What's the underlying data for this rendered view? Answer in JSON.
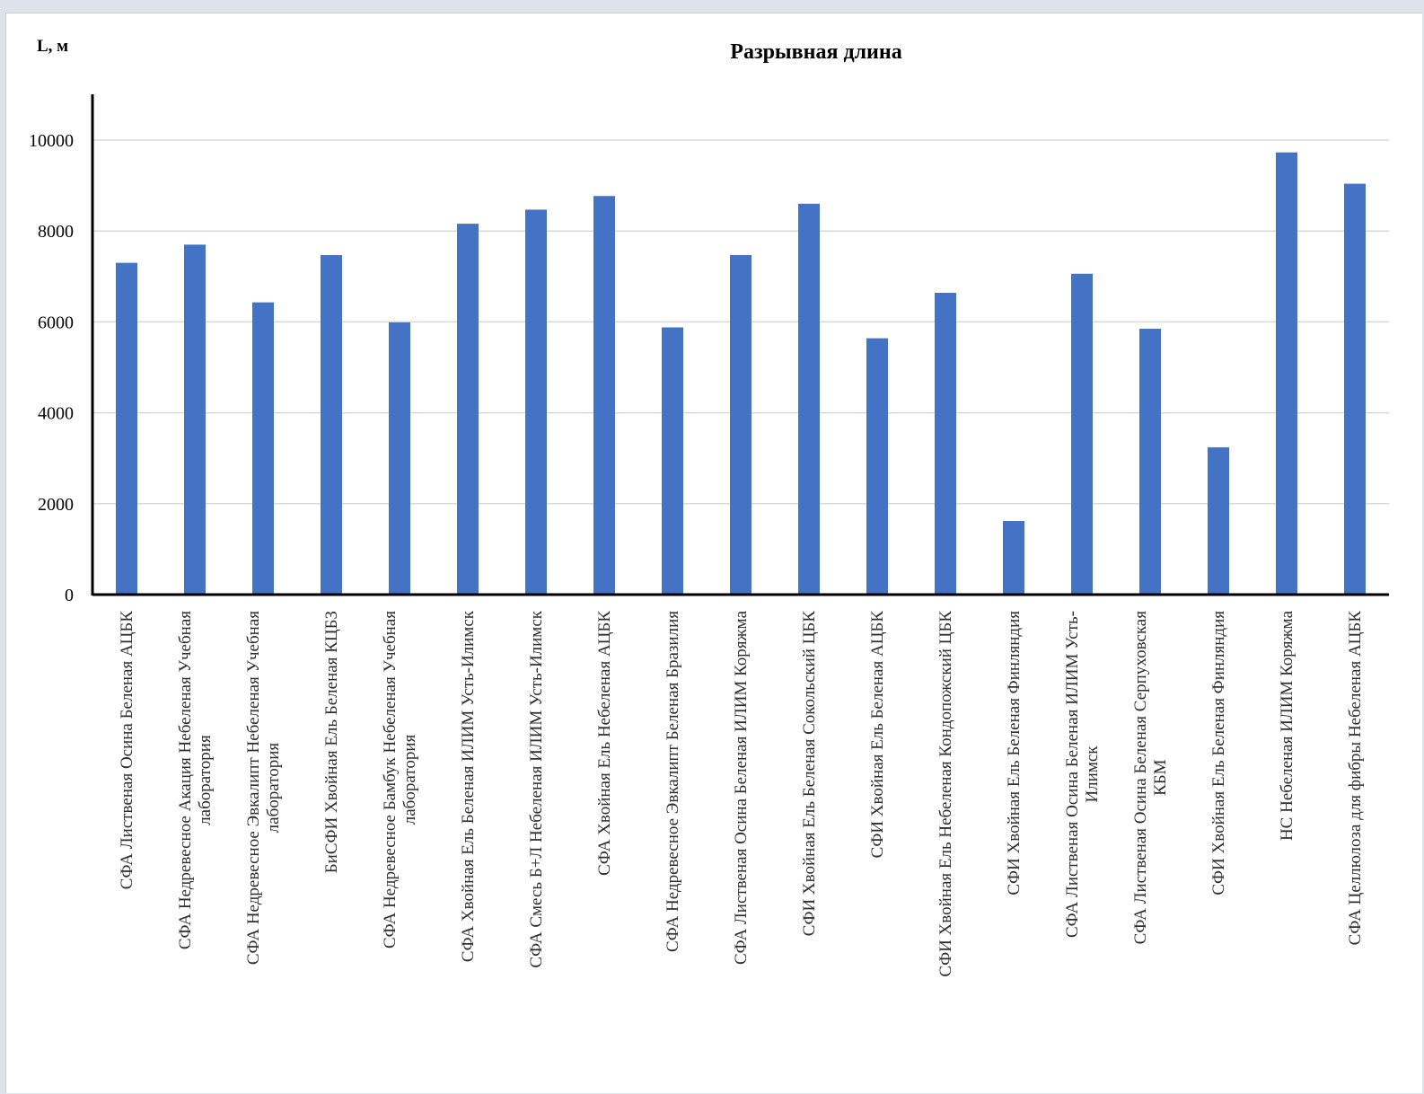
{
  "chart_data": {
    "type": "bar",
    "title": "Разрывная длина",
    "ylabel": "L, м",
    "xlabel": "",
    "ylim": [
      0,
      11000
    ],
    "yticks": [
      0,
      2000,
      4000,
      6000,
      8000,
      10000
    ],
    "grid": true,
    "legend": "none",
    "bar_color": "#4472c4",
    "categories": [
      [
        "СФА Лиственая Осина Беленая АЦБК"
      ],
      [
        "СФА Недревесное Акация Небеленая Учебная",
        "лаборатория"
      ],
      [
        "СФА Недревесное Эвкалипт Небеленая Учебная",
        "лаборатория"
      ],
      [
        "БиСФИ Хвойная Ель Беленая КЦБЗ"
      ],
      [
        "СФА Недревесное Бамбук Небеленая Учебная",
        "лаборатория"
      ],
      [
        "СФА Хвойная Ель Беленая ИЛИМ Усть-Илимск"
      ],
      [
        "СФА Смесь Б+Л Небеленая ИЛИМ Усть-Илимск"
      ],
      [
        "СФА Хвойная Ель Небеленая АЦБК"
      ],
      [
        "СФА Недревесное Эвкалипт Беленая Бразилия"
      ],
      [
        "СФА Лиственая Осина Беленая ИЛИМ Коряжма"
      ],
      [
        "СФИ Хвойная Ель Беленая Сокольский ЦБК"
      ],
      [
        "СФИ Хвойная Ель Беленая АЦБК"
      ],
      [
        "СФИ Хвойная Ель Небеленая Кондопожский ЦБК"
      ],
      [
        "СФИ Хвойная Ель Беленая Финляндия"
      ],
      [
        "СФА Лиственая Осина Беленая ИЛИМ Усть-",
        "Илимск"
      ],
      [
        "СФА Лиственая Осина Беленая Серпуховская",
        "КБМ"
      ],
      [
        "СФИ Хвойная Ель Беленая Финляндия"
      ],
      [
        "НС Небеленая ИЛИМ Коряжма"
      ],
      [
        "СФА Целлюлоза для фибры Небеленая АЦБК"
      ]
    ],
    "values": [
      7300,
      7700,
      6430,
      7470,
      5990,
      8160,
      8470,
      8770,
      5880,
      7470,
      8600,
      5640,
      6640,
      1620,
      7060,
      5850,
      3240,
      9730,
      9040
    ]
  }
}
